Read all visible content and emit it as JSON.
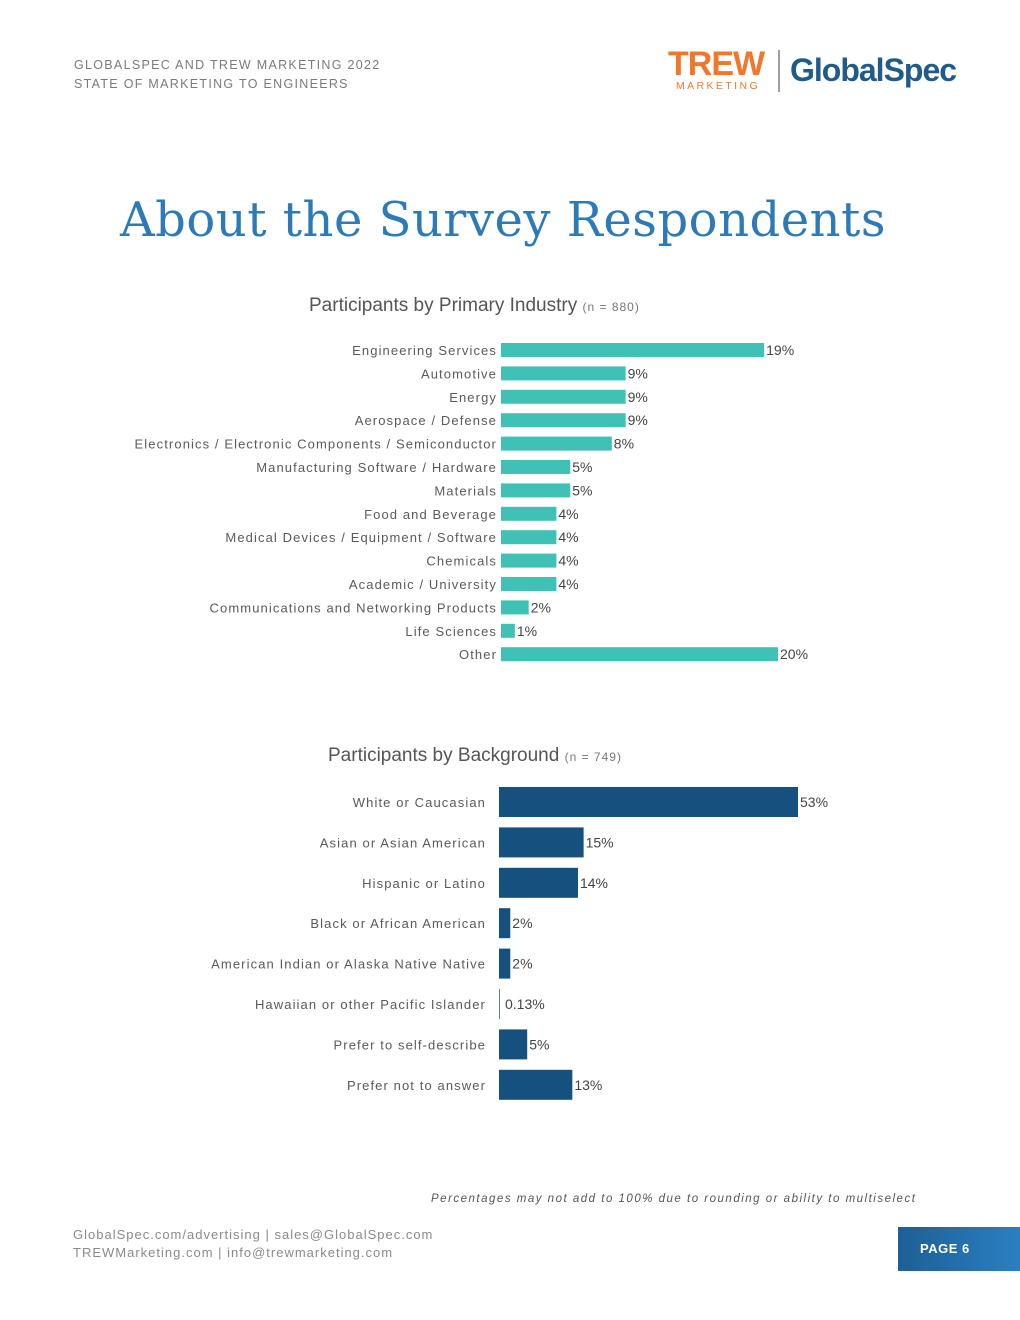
{
  "header": {
    "line1": "GLOBALSPEC AND TREW MARKETING 2022",
    "line2": "STATE OF MARKETING TO ENGINEERS",
    "logo_trew": "TREW",
    "logo_trew_sub": "MARKETING",
    "logo_globalspec": "GlobalSpec",
    "colors": {
      "trew": "#f0782d",
      "globalspec": "#1f5c8b"
    }
  },
  "page_title": "About the Survey Respondents",
  "chart_data": [
    {
      "type": "bar",
      "orientation": "horizontal",
      "title": "Participants by Primary Industry",
      "subtitle": "(n = 880)",
      "color": "#3fc1b5",
      "categories": [
        "Engineering Services",
        "Automotive",
        "Energy",
        "Aerospace / Defense",
        "Electronics / Electronic Components / Semiconductor",
        "Manufacturing Software / Hardware",
        "Materials",
        "Food and Beverage",
        "Medical Devices / Equipment / Software",
        "Chemicals",
        "Academic / University",
        "Communications and Networking Products",
        "Life Sciences",
        "Other"
      ],
      "values": [
        19,
        9,
        9,
        9,
        8,
        5,
        5,
        4,
        4,
        4,
        4,
        2,
        1,
        20
      ],
      "labels": [
        "19%",
        "9%",
        "9%",
        "9%",
        "8%",
        "5%",
        "5%",
        "4%",
        "4%",
        "4%",
        "4%",
        "2%",
        "1%",
        "20%"
      ],
      "xlim": [
        0,
        20
      ],
      "grid": false
    },
    {
      "type": "bar",
      "orientation": "horizontal",
      "title": "Participants by Background",
      "subtitle": "(n = 749)",
      "color": "#16507e",
      "categories": [
        "White or Caucasian",
        "Asian or Asian American",
        "Hispanic or Latino",
        "Black or African American",
        "American Indian or Alaska Native Native",
        "Hawaiian or other Pacific Islander",
        "Prefer to self-describe",
        "Prefer not to answer"
      ],
      "values": [
        53,
        15,
        14,
        2,
        2,
        0.13,
        5,
        13
      ],
      "labels": [
        "53%",
        "15%",
        "14%",
        "2%",
        "2%",
        "0.13%",
        "5%",
        "13%"
      ],
      "xlim": [
        0,
        53
      ],
      "grid": false
    }
  ],
  "footnote": "Percentages may not add to 100% due to rounding or ability to multiselect",
  "footer": {
    "line1": "GlobalSpec.com/advertising  |  sales@GlobalSpec.com",
    "line2": "TREWMarketing.com  |  info@trewmarketing.com",
    "page_label": "PAGE 6"
  }
}
